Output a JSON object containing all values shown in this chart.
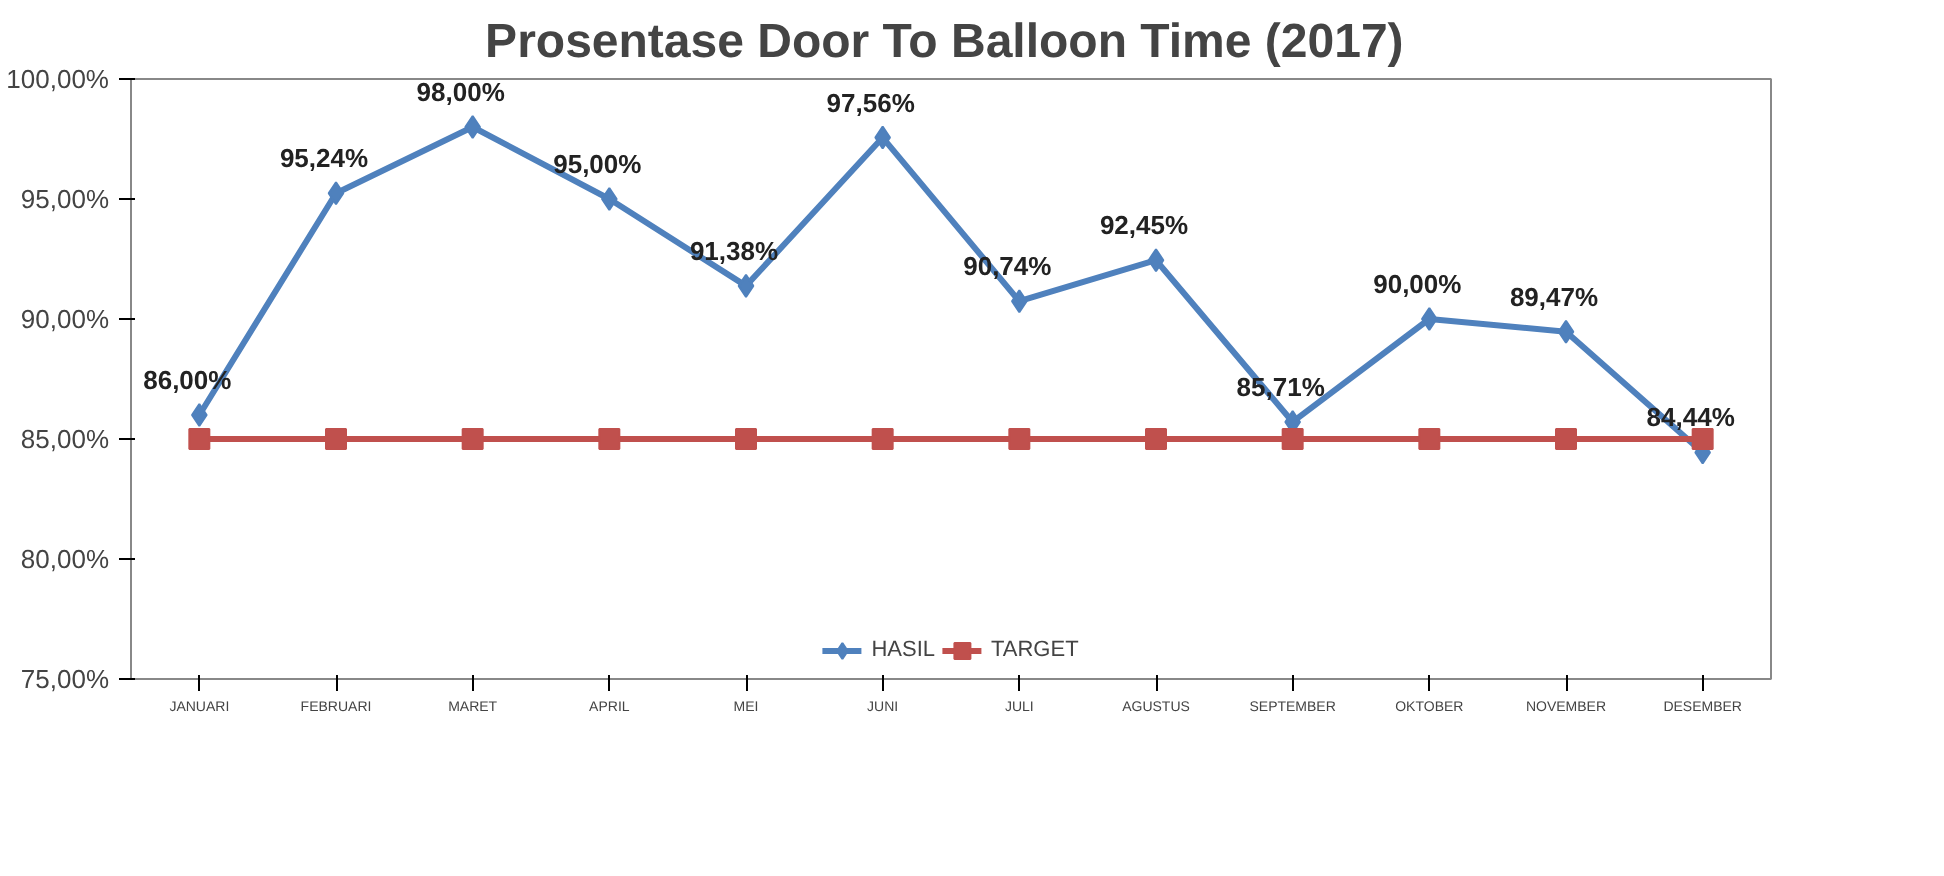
{
  "chart_data": {
    "type": "line",
    "title": "Prosentase Door To Balloon Time  (2017)",
    "categories": [
      "JANUARI",
      "FEBRUARI",
      "MARET",
      "APRIL",
      "MEI",
      "JUNI",
      "JULI",
      "AGUSTUS",
      "SEPTEMBER",
      "OKTOBER",
      "NOVEMBER",
      "DESEMBER"
    ],
    "series": [
      {
        "name": "HASIL",
        "color": "#4f81bd",
        "marker": "diamond",
        "values": [
          86.0,
          95.24,
          98.0,
          95.0,
          91.38,
          97.56,
          90.74,
          92.45,
          85.71,
          90.0,
          89.47,
          84.44
        ],
        "value_labels": [
          "86,00%",
          "95,24%",
          "98,00%",
          "95,00%",
          "91,38%",
          "97,56%",
          "90,74%",
          "92,45%",
          "85,71%",
          "90,00%",
          "89,47%",
          "84,44%"
        ]
      },
      {
        "name": "TARGET",
        "color": "#c0504d",
        "marker": "square",
        "values": [
          85,
          85,
          85,
          85,
          85,
          85,
          85,
          85,
          85,
          85,
          85,
          85
        ]
      }
    ],
    "ylim": [
      75,
      100
    ],
    "yticks": [
      {
        "value": 75,
        "label": "75,00%"
      },
      {
        "value": 80,
        "label": "80,00%"
      },
      {
        "value": 85,
        "label": "85,00%"
      },
      {
        "value": 90,
        "label": "90,00%"
      },
      {
        "value": 95,
        "label": "95,00%"
      },
      {
        "value": 100,
        "label": "100,00%"
      }
    ],
    "grid": false,
    "legend": "bottom",
    "line_style": "solid"
  }
}
